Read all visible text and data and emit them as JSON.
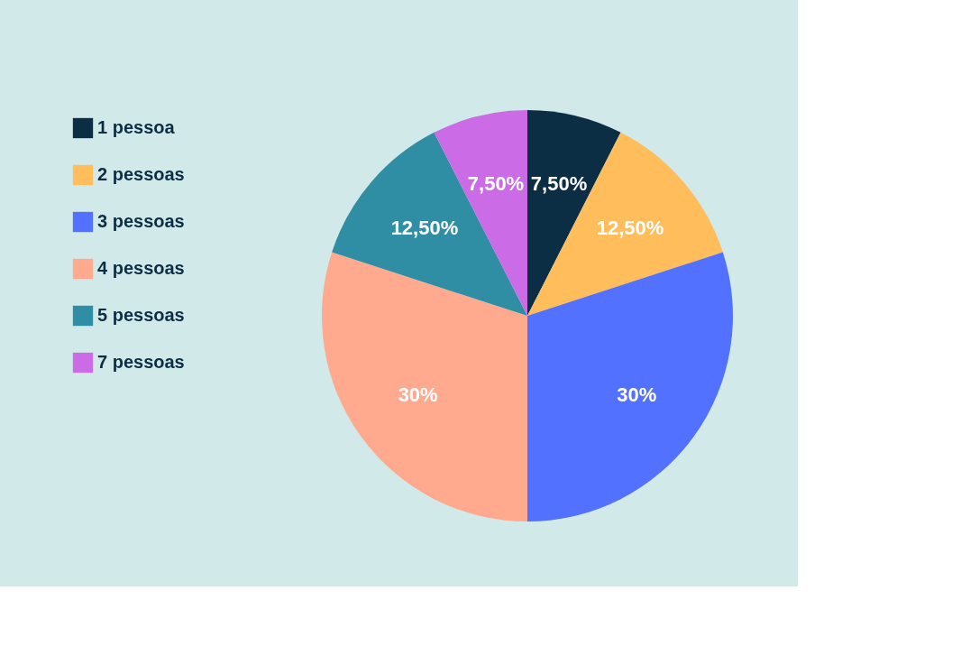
{
  "chart_data": {
    "type": "pie",
    "categories": [
      "1 pessoa",
      "2 pessoas",
      "3 pessoas",
      "4 pessoas",
      "5 pessoas",
      "7 pessoas"
    ],
    "values": [
      7.5,
      12.5,
      30,
      30,
      12.5,
      7.5
    ],
    "colors": [
      "#0b2e45",
      "#ffbd5c",
      "#5271ff",
      "#ffaa8f",
      "#2f8ea3",
      "#cb6ce6"
    ],
    "value_labels": [
      "7,50%",
      "12,50%",
      "30%",
      "30%",
      "12,50%",
      "7,50%"
    ],
    "legend": "left"
  }
}
